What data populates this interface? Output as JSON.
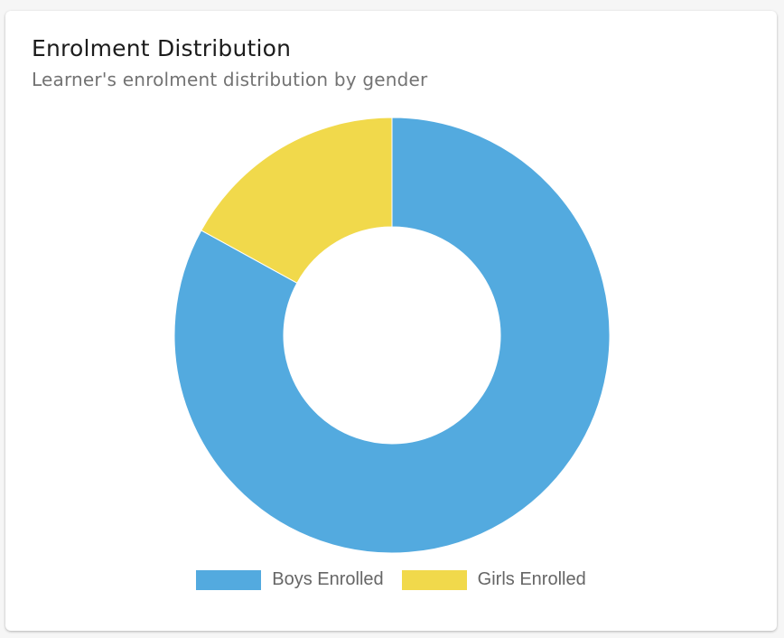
{
  "card": {
    "title": "Enrolment Distribution",
    "subtitle": "Learner's enrolment distribution by gender"
  },
  "chart_data": {
    "type": "pie",
    "variant": "doughnut",
    "categories": [
      "Boys Enrolled",
      "Girls Enrolled"
    ],
    "values": [
      83,
      17
    ],
    "colors": [
      "#53aadf",
      "#f1d94b"
    ],
    "legend": "bottom",
    "start_angle": "top",
    "direction": "clockwise"
  }
}
